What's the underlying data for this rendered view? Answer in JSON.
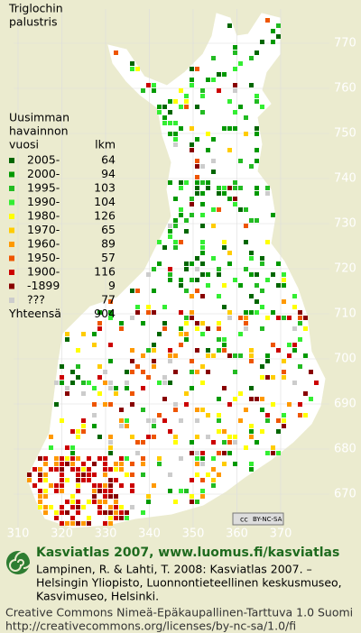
{
  "species": [
    "Triglochin",
    "palustris"
  ],
  "legend": {
    "title": [
      "Uusimman",
      "havainnon",
      "vuosi"
    ],
    "count_header": "lkm",
    "items": [
      {
        "label": "2005-",
        "count": 64,
        "color": "#006600"
      },
      {
        "label": "2000-",
        "count": 94,
        "color": "#009900"
      },
      {
        "label": "1995-",
        "count": 103,
        "color": "#22bb22"
      },
      {
        "label": "1990-",
        "count": 104,
        "color": "#33ee33"
      },
      {
        "label": "1980-",
        "count": 126,
        "color": "#ffff00"
      },
      {
        "label": "1970-",
        "count": 65,
        "color": "#ffcc00"
      },
      {
        "label": "1960-",
        "count": 89,
        "color": "#ff9900"
      },
      {
        "label": "1950-",
        "count": 57,
        "color": "#ee5500"
      },
      {
        "label": "1900-",
        "count": 116,
        "color": "#cc0000"
      },
      {
        "label": "-1899",
        "count": 9,
        "color": "#880000"
      },
      {
        "label": "???",
        "count": 77,
        "color": "#cccccc"
      }
    ],
    "total": {
      "label": "Yhteensä",
      "count": 904
    }
  },
  "y_grid_labels": [
    770,
    760,
    750,
    740,
    730,
    720,
    710,
    700,
    690,
    680,
    670
  ],
  "x_grid_labels": [
    310,
    320,
    330,
    340,
    350,
    360,
    370
  ],
  "cc_badge": [
    "cc",
    "BY-NC-SA"
  ],
  "footer": {
    "heading": "Kasviatlas 2007, www.luomus.fi/kasviatlas",
    "citation": [
      "Lampinen, R. & Lahti, T. 2008: Kasviatlas 2007. –",
      "Helsingin Yliopisto, Luonnontieteellinen keskusmuseo,",
      "Kasvimuseo, Helsinki."
    ],
    "license": [
      "Creative Commons Nimeä-Epäkaupallinen-Tarttuva 1.0 Suomi",
      "http://creativecommons.org/licenses/by-nc-sa/1.0/fi"
    ]
  }
}
